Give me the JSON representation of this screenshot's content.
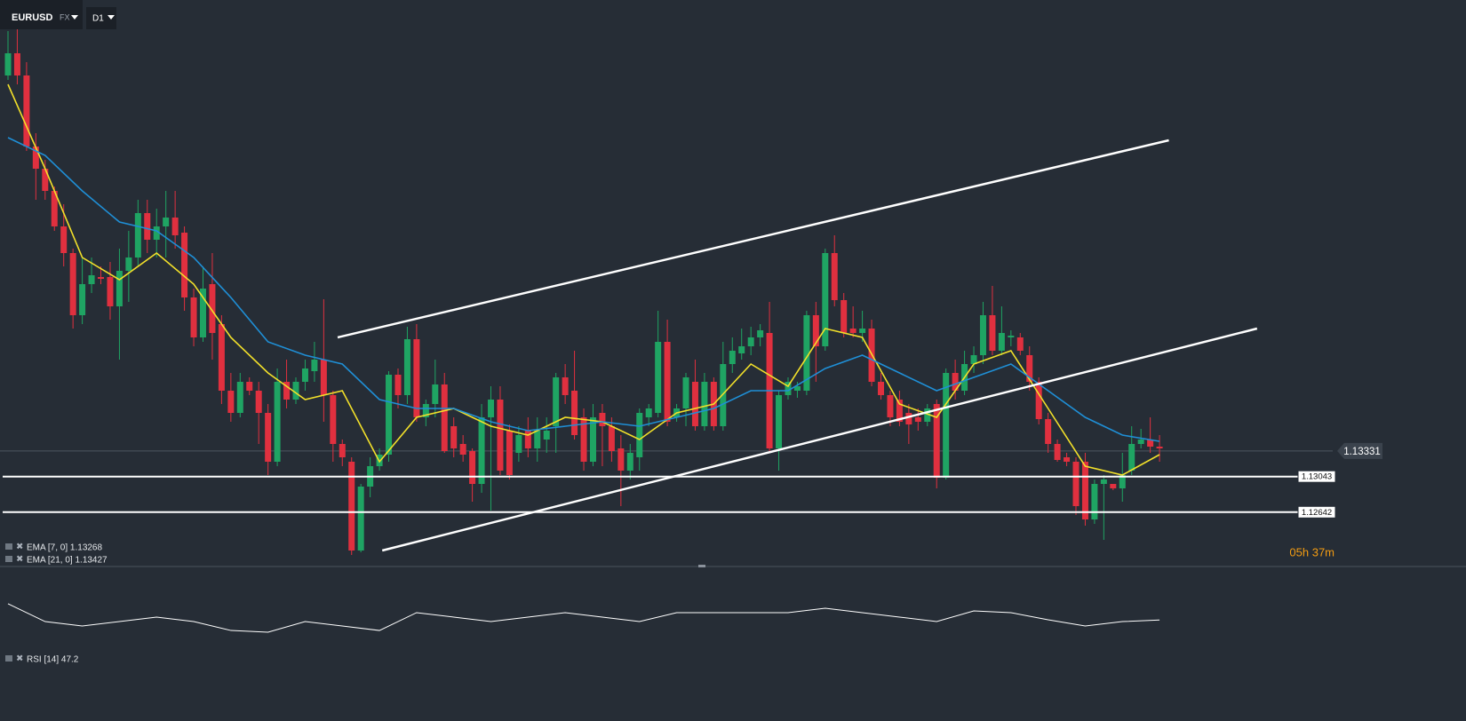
{
  "chart_data": {
    "type": "candlestick",
    "symbol": "EURUSD",
    "market": "FX",
    "timeframe": "D1",
    "xlim": [
      -0.86,
      157
    ],
    "ylim": [
      1.1204,
      1.1841
    ],
    "up_color": "#1fa463",
    "down_color": "#e0303f",
    "ohlc": [
      [
        1.1756,
        1.1806,
        1.1751,
        1.1781
      ],
      [
        1.1781,
        1.1811,
        1.1746,
        1.1756
      ],
      [
        1.1756,
        1.1771,
        1.1671,
        1.1676
      ],
      [
        1.1676,
        1.1691,
        1.1616,
        1.1651
      ],
      [
        1.1651,
        1.1661,
        1.1616,
        1.1626
      ],
      [
        1.1626,
        1.1631,
        1.1581,
        1.1586
      ],
      [
        1.1586,
        1.1611,
        1.1541,
        1.1556
      ],
      [
        1.1556,
        1.1561,
        1.1471,
        1.1486
      ],
      [
        1.1486,
        1.1551,
        1.1476,
        1.1521
      ],
      [
        1.1521,
        1.1551,
        1.1511,
        1.1531
      ],
      [
        1.1529,
        1.1541,
        1.1521,
        1.1527
      ],
      [
        1.1529,
        1.1546,
        1.1481,
        1.1496
      ],
      [
        1.1496,
        1.1561,
        1.1436,
        1.1536
      ],
      [
        1.1536,
        1.1581,
        1.1501,
        1.1551
      ],
      [
        1.1551,
        1.1616,
        1.1541,
        1.1601
      ],
      [
        1.1601,
        1.1616,
        1.1556,
        1.1571
      ],
      [
        1.1571,
        1.1606,
        1.1551,
        1.1586
      ],
      [
        1.1586,
        1.1626,
        1.1551,
        1.1596
      ],
      [
        1.1596,
        1.1626,
        1.1561,
        1.1576
      ],
      [
        1.1579,
        1.1586,
        1.1491,
        1.1506
      ],
      [
        1.1506,
        1.1516,
        1.1451,
        1.1461
      ],
      [
        1.1461,
        1.1541,
        1.1456,
        1.1516
      ],
      [
        1.1521,
        1.1556,
        1.1436,
        1.1466
      ],
      [
        1.1476,
        1.1486,
        1.1386,
        1.1401
      ],
      [
        1.1401,
        1.1421,
        1.1366,
        1.1376
      ],
      [
        1.1376,
        1.1421,
        1.1371,
        1.1411
      ],
      [
        1.1411,
        1.1416,
        1.1396,
        1.1401
      ],
      [
        1.1401,
        1.1411,
        1.1341,
        1.1376
      ],
      [
        1.1376,
        1.1386,
        1.1306,
        1.1321
      ],
      [
        1.1321,
        1.1426,
        1.1316,
        1.1411
      ],
      [
        1.1411,
        1.1436,
        1.1381,
        1.1391
      ],
      [
        1.1391,
        1.1416,
        1.1386,
        1.1411
      ],
      [
        1.1411,
        1.1436,
        1.1401,
        1.1426
      ],
      [
        1.1423,
        1.1456,
        1.1411,
        1.1436
      ],
      [
        1.1436,
        1.1504,
        1.1366,
        1.1396
      ],
      [
        1.1396,
        1.1401,
        1.1321,
        1.1341
      ],
      [
        1.1341,
        1.1346,
        1.1316,
        1.1326
      ],
      [
        1.1321,
        1.1326,
        1.1216,
        1.1221
      ],
      [
        1.1221,
        1.1296,
        1.1219,
        1.1293
      ],
      [
        1.1293,
        1.1326,
        1.1281,
        1.1316
      ],
      [
        1.1316,
        1.1336,
        1.1311,
        1.1329
      ],
      [
        1.1329,
        1.1423,
        1.1321,
        1.1419
      ],
      [
        1.1419,
        1.1426,
        1.1381,
        1.1396
      ],
      [
        1.1396,
        1.1473,
        1.1386,
        1.1459
      ],
      [
        1.1459,
        1.1476,
        1.1366,
        1.1371
      ],
      [
        1.1371,
        1.1391,
        1.1361,
        1.1386
      ],
      [
        1.1386,
        1.1436,
        1.1371,
        1.1408
      ],
      [
        1.1408,
        1.1421,
        1.1331,
        1.1333
      ],
      [
        1.1361,
        1.1371,
        1.1326,
        1.1336
      ],
      [
        1.1341,
        1.1351,
        1.1321,
        1.1329
      ],
      [
        1.1333,
        1.1336,
        1.1276,
        1.1296
      ],
      [
        1.1296,
        1.1386,
        1.1286,
        1.1371
      ],
      [
        1.1371,
        1.1406,
        1.1266,
        1.1391
      ],
      [
        1.1391,
        1.1406,
        1.1306,
        1.1311
      ],
      [
        1.1356,
        1.1363,
        1.1301,
        1.1306
      ],
      [
        1.1331,
        1.1361,
        1.1321,
        1.1351
      ],
      [
        1.1356,
        1.1371,
        1.1326,
        1.1336
      ],
      [
        1.1336,
        1.1371,
        1.1321,
        1.1356
      ],
      [
        1.1346,
        1.1371,
        1.1331,
        1.1356
      ],
      [
        1.1361,
        1.1421,
        1.1331,
        1.1416
      ],
      [
        1.1416,
        1.1431,
        1.1386,
        1.1396
      ],
      [
        1.1401,
        1.1446,
        1.1346,
        1.1351
      ],
      [
        1.1371,
        1.1381,
        1.1311,
        1.1321
      ],
      [
        1.1321,
        1.1386,
        1.1316,
        1.1371
      ],
      [
        1.1376,
        1.1386,
        1.1316,
        1.1361
      ],
      [
        1.1361,
        1.1371,
        1.1321,
        1.1333
      ],
      [
        1.1336,
        1.1351,
        1.1271,
        1.1311
      ],
      [
        1.1311,
        1.1341,
        1.1301,
        1.1331
      ],
      [
        1.1326,
        1.1381,
        1.1311,
        1.1376
      ],
      [
        1.1371,
        1.1386,
        1.1361,
        1.1381
      ],
      [
        1.1376,
        1.1491,
        1.1371,
        1.1456
      ],
      [
        1.1456,
        1.1481,
        1.1361,
        1.1366
      ],
      [
        1.1371,
        1.1386,
        1.1366,
        1.1381
      ],
      [
        1.1381,
        1.1421,
        1.1361,
        1.1416
      ],
      [
        1.1411,
        1.1436,
        1.1356,
        1.1361
      ],
      [
        1.1361,
        1.1421,
        1.1356,
        1.1411
      ],
      [
        1.1411,
        1.1416,
        1.1356,
        1.1361
      ],
      [
        1.1361,
        1.1456,
        1.1356,
        1.1431
      ],
      [
        1.1431,
        1.1461,
        1.1421,
        1.1446
      ],
      [
        1.1443,
        1.1471,
        1.1436,
        1.1451
      ],
      [
        1.1451,
        1.1473,
        1.1441,
        1.1461
      ],
      [
        1.1461,
        1.1476,
        1.1451,
        1.1469
      ],
      [
        1.1466,
        1.1501,
        1.1331,
        1.1336
      ],
      [
        1.1336,
        1.1401,
        1.1311,
        1.1396
      ],
      [
        1.1396,
        1.1416,
        1.1391,
        1.1411
      ],
      [
        1.1401,
        1.1411,
        1.1393,
        1.1406
      ],
      [
        1.1401,
        1.1491,
        1.1396,
        1.1486
      ],
      [
        1.1486,
        1.1501,
        1.1411,
        1.1451
      ],
      [
        1.1451,
        1.1561,
        1.1446,
        1.1556
      ],
      [
        1.1556,
        1.1576,
        1.1496,
        1.1503
      ],
      [
        1.1503,
        1.1511,
        1.1461,
        1.1466
      ],
      [
        1.1471,
        1.1496,
        1.1461,
        1.1466
      ],
      [
        1.1466,
        1.1491,
        1.1456,
        1.1471
      ],
      [
        1.1471,
        1.1481,
        1.1406,
        1.1411
      ],
      [
        1.1411,
        1.1421,
        1.1391,
        1.1396
      ],
      [
        1.1396,
        1.1401,
        1.1361,
        1.1371
      ],
      [
        1.1391,
        1.1401,
        1.1361,
        1.1366
      ],
      [
        1.1376,
        1.1386,
        1.1341,
        1.1363
      ],
      [
        1.1371,
        1.1381,
        1.1356,
        1.1366
      ],
      [
        1.1366,
        1.1386,
        1.1361,
        1.1381
      ],
      [
        1.1386,
        1.1391,
        1.1291,
        1.1303
      ],
      [
        1.1303,
        1.1426,
        1.1301,
        1.1421
      ],
      [
        1.1421,
        1.1436,
        1.1391,
        1.1401
      ],
      [
        1.1401,
        1.1446,
        1.1396,
        1.1431
      ],
      [
        1.1431,
        1.1451,
        1.1421,
        1.1441
      ],
      [
        1.1441,
        1.1501,
        1.1431,
        1.1486
      ],
      [
        1.1486,
        1.1519,
        1.1441,
        1.1446
      ],
      [
        1.1446,
        1.1496,
        1.1441,
        1.1466
      ],
      [
        1.1461,
        1.1469,
        1.1451,
        1.1463
      ],
      [
        1.1461,
        1.1466,
        1.1441,
        1.1446
      ],
      [
        1.1441,
        1.1451,
        1.1401,
        1.1411
      ],
      [
        1.1411,
        1.1416,
        1.1363,
        1.1369
      ],
      [
        1.1369,
        1.1376,
        1.1331,
        1.1341
      ],
      [
        1.1341,
        1.1346,
        1.1321,
        1.1323
      ],
      [
        1.1326,
        1.1331,
        1.1316,
        1.1321
      ],
      [
        1.1321,
        1.1326,
        1.1261,
        1.1271
      ],
      [
        1.1321,
        1.1331,
        1.1249,
        1.1256
      ],
      [
        1.1256,
        1.1301,
        1.1251,
        1.1296
      ],
      [
        1.1296,
        1.1306,
        1.1233,
        1.1301
      ],
      [
        1.1296,
        1.1296,
        1.1289,
        1.1291
      ],
      [
        1.1291,
        1.1331,
        1.1276,
        1.1306
      ],
      [
        1.1311,
        1.1361,
        1.1306,
        1.1341
      ],
      [
        1.1341,
        1.1358,
        1.1336,
        1.1346
      ],
      [
        1.1346,
        1.1371,
        1.1331,
        1.1338
      ],
      [
        1.1338,
        1.1351,
        1.1321,
        1.1336
      ]
    ],
    "overlays": [
      {
        "name": "EMA [7, 0] 1.13268",
        "color": "#f2e02a",
        "x": [
          0,
          4,
          8,
          12,
          16,
          20,
          24,
          28,
          32,
          36,
          40,
          44,
          48,
          52,
          56,
          60,
          64,
          68,
          72,
          76,
          80,
          84,
          88,
          92,
          96,
          100,
          104,
          108,
          112,
          116,
          120,
          124
        ],
        "values": [
          1.1746,
          1.1651,
          1.1551,
          1.1526,
          1.1556,
          1.1521,
          1.1461,
          1.1421,
          1.1391,
          1.1401,
          1.1321,
          1.1371,
          1.1381,
          1.1361,
          1.1351,
          1.1371,
          1.1366,
          1.1346,
          1.1376,
          1.1386,
          1.1431,
          1.1406,
          1.1471,
          1.1461,
          1.1386,
          1.1371,
          1.1431,
          1.1446,
          1.1381,
          1.1316,
          1.1306,
          1.1329
        ]
      },
      {
        "name": "EMA [21, 0] 1.13427",
        "color": "#1f8fd6",
        "x": [
          0,
          4,
          8,
          12,
          16,
          20,
          24,
          28,
          32,
          36,
          40,
          44,
          48,
          52,
          56,
          60,
          64,
          68,
          72,
          76,
          80,
          84,
          88,
          92,
          96,
          100,
          104,
          108,
          112,
          116,
          120,
          124
        ],
        "values": [
          1.1686,
          1.1666,
          1.1626,
          1.1591,
          1.1581,
          1.1551,
          1.1506,
          1.1456,
          1.1441,
          1.1431,
          1.1391,
          1.1381,
          1.1381,
          1.1366,
          1.1356,
          1.1361,
          1.1366,
          1.1361,
          1.1371,
          1.1381,
          1.1401,
          1.1401,
          1.1426,
          1.1441,
          1.1421,
          1.1401,
          1.1416,
          1.1431,
          1.1401,
          1.1371,
          1.1351,
          1.1344
        ]
      }
    ],
    "trendlines": [
      {
        "x": [
          35.5,
          125
        ],
        "values": [
          1.1461,
          1.1683
        ]
      },
      {
        "x": [
          40.3,
          134.5
        ],
        "values": [
          1.1221,
          1.1471
        ]
      }
    ],
    "levels": [
      1.13043,
      1.12642
    ],
    "last_price": 1.13331,
    "countdown": "05h 37m",
    "rsi": {
      "name": "RSI [14] 47.2",
      "color": "#ffffff",
      "ylim": [
        20,
        80
      ],
      "x": [
        0,
        4,
        8,
        12,
        16,
        20,
        24,
        28,
        32,
        36,
        40,
        44,
        48,
        52,
        56,
        60,
        64,
        68,
        72,
        76,
        80,
        84,
        88,
        92,
        96,
        100,
        104,
        108,
        112,
        116,
        120,
        124
      ],
      "values": [
        62.9,
        45.7,
        41.4,
        45.7,
        50,
        45.7,
        37.1,
        35.4,
        45.7,
        41.4,
        37.1,
        54.3,
        50,
        45.7,
        50,
        54.3,
        50,
        45.7,
        54.3,
        54.3,
        54.3,
        54.3,
        58.6,
        54.3,
        50,
        45.7,
        56,
        54.3,
        47.4,
        41.4,
        45.7,
        47.2
      ]
    }
  }
}
